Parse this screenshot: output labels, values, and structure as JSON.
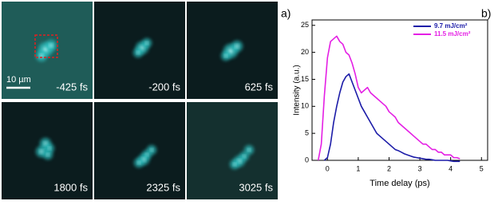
{
  "chart_data": {
    "type": "line",
    "xlabel": "Time delay (ps)",
    "ylabel": "Intensity (a.u.)",
    "x": [
      -0.3,
      -0.2,
      -0.1,
      0,
      0.1,
      0.2,
      0.3,
      0.4,
      0.5,
      0.6,
      0.7,
      0.8,
      0.9,
      1.0,
      1.1,
      1.2,
      1.3,
      1.4,
      1.5,
      1.6,
      1.7,
      1.8,
      1.9,
      2.0,
      2.1,
      2.2,
      2.3,
      2.4,
      2.5,
      2.6,
      2.7,
      2.8,
      2.9,
      3.0,
      3.1,
      3.2,
      3.3,
      3.4,
      3.5,
      3.6,
      3.7,
      3.8,
      3.9,
      4.0,
      4.1,
      4.2,
      4.3
    ],
    "series": [
      {
        "name": "9.7   mJ/cm²",
        "color": "#1c1ca8",
        "values": [
          null,
          null,
          0,
          0.5,
          3,
          7,
          10,
          12.5,
          14.5,
          15.5,
          16,
          14.5,
          13,
          11.5,
          10,
          9,
          8,
          7,
          6,
          5,
          4.5,
          4,
          3.5,
          3,
          2.5,
          2,
          1.8,
          1.5,
          1.2,
          1,
          0.8,
          0.6,
          0.5,
          0.4,
          0.3,
          0.2,
          0.2,
          0.1,
          0,
          0,
          0,
          0,
          0,
          -0.1,
          -0.2,
          -0.2,
          -0.2
        ]
      },
      {
        "name": "11.5 mJ/cm²",
        "color": "#e41fe4",
        "values": [
          0,
          3,
          12,
          19,
          22,
          22.5,
          23,
          22,
          21.5,
          20,
          19.5,
          18,
          16,
          13.5,
          12.5,
          13,
          13.5,
          12.5,
          12,
          11.5,
          11,
          10.5,
          10,
          9,
          8.5,
          8,
          7,
          6.5,
          6,
          5.5,
          5,
          4.5,
          4,
          3.5,
          3,
          3,
          2.5,
          2,
          2,
          1.5,
          1.5,
          1,
          1,
          1,
          0.5,
          0.5,
          0.3
        ]
      }
    ],
    "xlim": [
      -0.5,
      5.2
    ],
    "xticks": [
      0,
      1,
      2,
      3,
      4,
      5
    ],
    "ylim": [
      0,
      26
    ],
    "yticks": [
      0,
      5,
      10,
      15,
      20,
      25
    ],
    "legend": "upper-right"
  },
  "panel_labels": [
    "a)",
    "b)"
  ],
  "images": {
    "labels": [
      "-425 fs",
      "-200 fs",
      "625 fs",
      "1800 fs",
      "2325 fs",
      "3025 fs"
    ],
    "scale_bar": "10 µm"
  }
}
